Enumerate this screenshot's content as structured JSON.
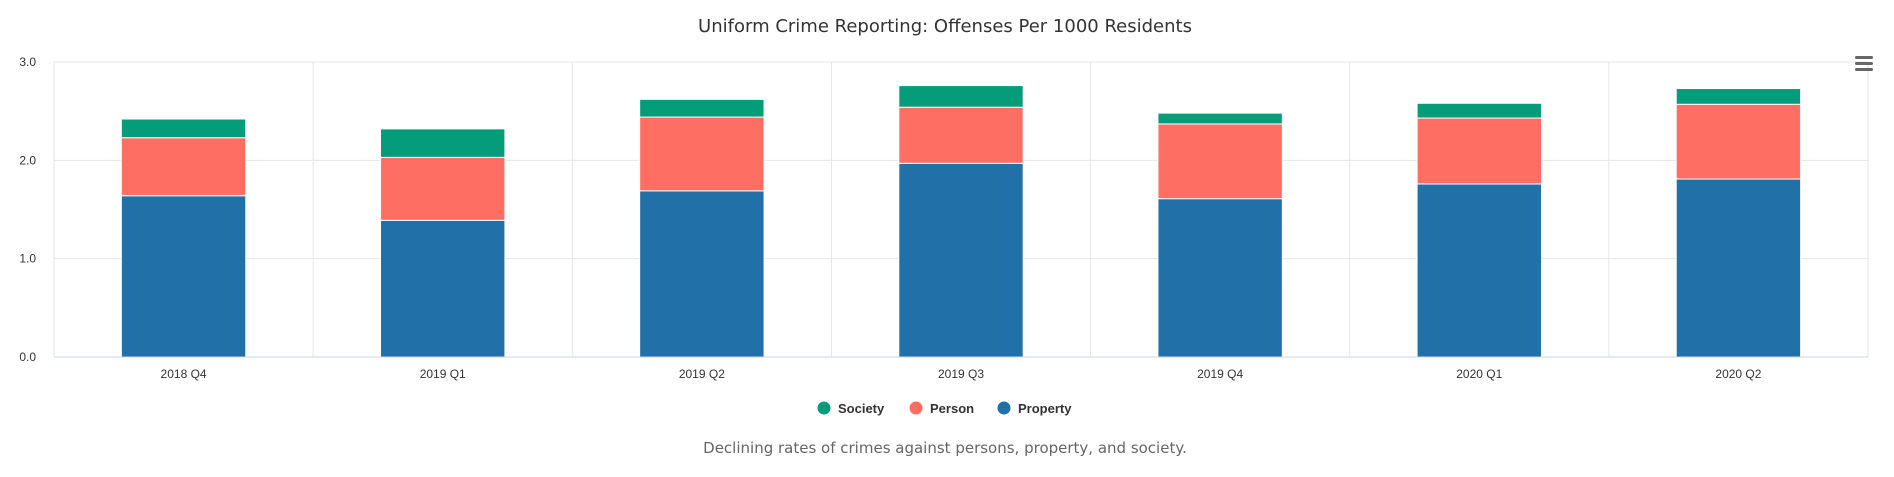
{
  "chart_data": {
    "type": "bar",
    "stacked": true,
    "title": "Uniform Crime Reporting: Offenses Per 1000 Residents",
    "caption": "Declining rates of crimes against persons, property, and society.",
    "xlabel": "",
    "ylabel": "",
    "ylim": [
      0,
      3
    ],
    "yticks": [
      "0.0",
      "1.0",
      "2.0",
      "3.0"
    ],
    "grid": true,
    "legend_position": "bottom",
    "categories": [
      "2018 Q4",
      "2019 Q1",
      "2019 Q2",
      "2019 Q3",
      "2019 Q4",
      "2020 Q1",
      "2020 Q2"
    ],
    "series": [
      {
        "name": "Property",
        "color": "#2270a8",
        "values": [
          1.64,
          1.39,
          1.69,
          1.97,
          1.61,
          1.76,
          1.81
        ]
      },
      {
        "name": "Person",
        "color": "#ff6e63",
        "values": [
          0.59,
          0.64,
          0.75,
          0.57,
          0.76,
          0.67,
          0.76
        ]
      },
      {
        "name": "Society",
        "color": "#059c7a",
        "values": [
          0.19,
          0.29,
          0.18,
          0.22,
          0.11,
          0.15,
          0.16
        ]
      }
    ],
    "legend_order": [
      "Society",
      "Person",
      "Property"
    ]
  },
  "toolbar": {
    "menu_icon": "hamburger-menu-icon"
  }
}
